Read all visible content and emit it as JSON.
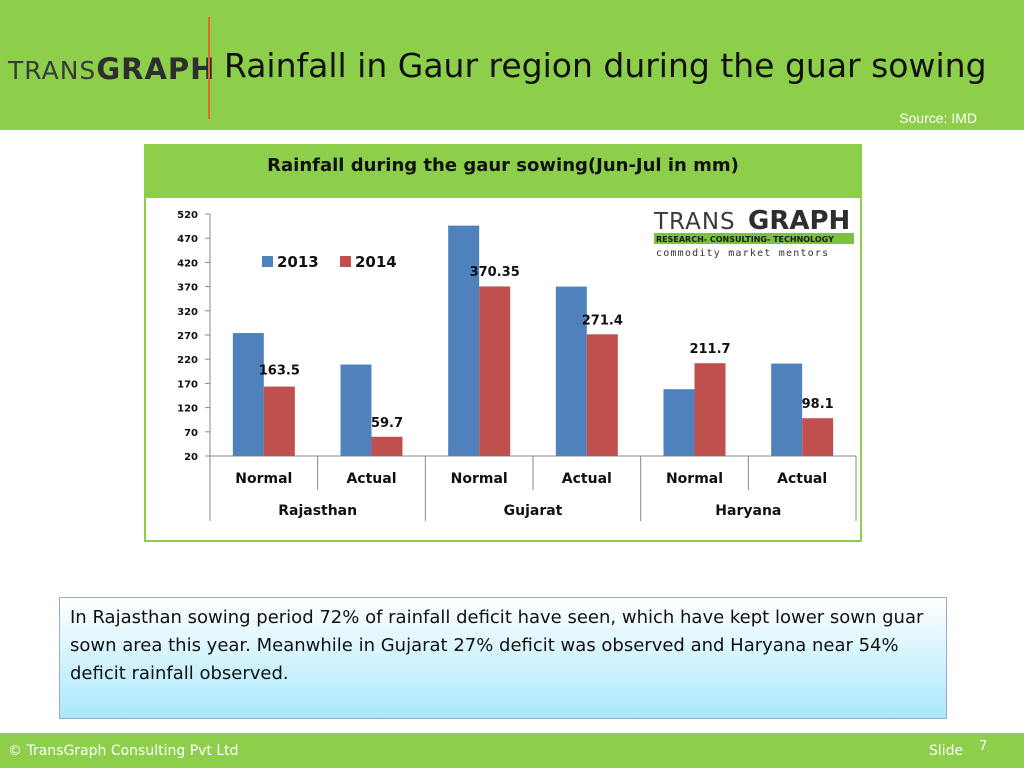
{
  "header": {
    "logo_prefix": "TRANS",
    "logo_bold": "GRAPH",
    "title": "Rainfall in Gaur region during the guar sowing",
    "source": "Source: IMD"
  },
  "chart_box": {
    "title": "Rainfall during the gaur sowing(Jun-Jul in mm)",
    "logo_prefix": "TRANS",
    "logo_bold": "GRAPH",
    "logo_tagline": "RESEARCH- CONSULTING- TECHNOLOGY",
    "logo_motto": "commodity market mentors"
  },
  "chart_data": {
    "type": "bar",
    "title": "Rainfall during the gaur sowing(Jun-Jul in mm)",
    "categories": [
      "Normal",
      "Actual",
      "Normal",
      "Actual",
      "Normal",
      "Actual"
    ],
    "groups": [
      "Rajasthan",
      "Gujarat",
      "Haryana"
    ],
    "series": [
      {
        "name": "2013",
        "color": "#4f81bd",
        "values": [
          274,
          209,
          496,
          370,
          158,
          211
        ]
      },
      {
        "name": "2014",
        "color": "#c0504d",
        "values": [
          163.5,
          59.7,
          370.35,
          271.4,
          211.7,
          98.1
        ]
      }
    ],
    "data_labels": [
      "163.5",
      "59.7",
      "370.35",
      "271.4",
      "211.7",
      "98.1"
    ],
    "ylim": [
      20,
      520
    ],
    "yticks": [
      520,
      470,
      420,
      370,
      320,
      270,
      220,
      170,
      120,
      70,
      20
    ],
    "legend": "top-left",
    "grid": false
  },
  "callout": {
    "text": "In Rajasthan sowing period 72% of rainfall deficit have seen, which have kept lower sown guar sown area this year. Meanwhile in Gujarat 27% deficit was observed and Haryana near 54% deficit rainfall observed."
  },
  "footer": {
    "copyright": "© TransGraph Consulting Pvt Ltd",
    "slide_label": "Slide",
    "slide_number": "7"
  }
}
